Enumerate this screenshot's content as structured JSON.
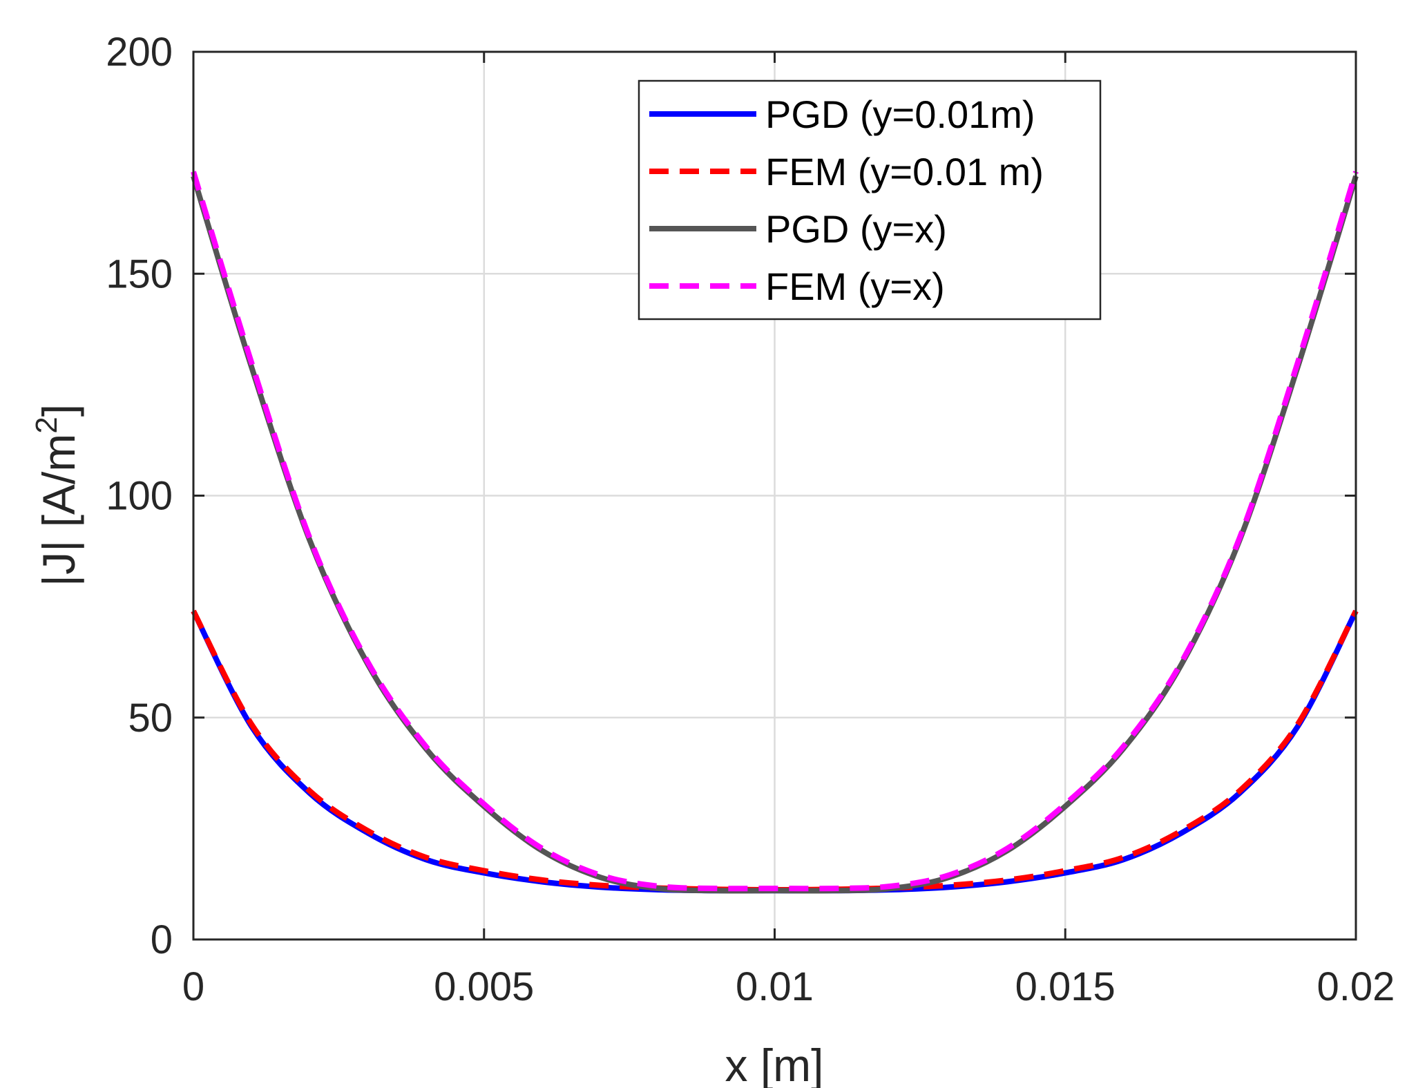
{
  "chart_data": {
    "type": "line",
    "title": "",
    "xlabel": "x [m]",
    "ylabel": "|J| [A/m",
    "ylabel_superscript": "2",
    "ylabel_suffix": "]",
    "xlim": [
      0,
      0.02
    ],
    "ylim": [
      0,
      200
    ],
    "xticks": [
      0,
      0.005,
      0.01,
      0.015,
      0.02
    ],
    "xtick_labels": [
      "0",
      "0.005",
      "0.01",
      "0.015",
      "0.02"
    ],
    "yticks": [
      0,
      50,
      100,
      150,
      200
    ],
    "ytick_labels": [
      "0",
      "50",
      "100",
      "150",
      "200"
    ],
    "grid": true,
    "legend_position": "top-center",
    "x": [
      0,
      0.001,
      0.002,
      0.003,
      0.004,
      0.005,
      0.006,
      0.007,
      0.008,
      0.009,
      0.01,
      0.011,
      0.012,
      0.013,
      0.014,
      0.015,
      0.016,
      0.017,
      0.018,
      0.019,
      0.02
    ],
    "series": [
      {
        "name": "PGD (y=0.01m)",
        "color": "#0000ff",
        "style": "solid",
        "values": [
          74,
          48,
          33,
          24,
          18,
          15,
          13,
          11.8,
          11.2,
          11,
          11,
          11,
          11.2,
          11.8,
          13,
          15,
          18,
          24,
          33,
          48,
          74
        ]
      },
      {
        "name": "FEM (y=0.01 m)",
        "color": "#ff0000",
        "style": "dashed",
        "values": [
          74,
          48.5,
          33.5,
          24.5,
          18.5,
          15.5,
          13.4,
          12.2,
          11.6,
          11.3,
          11.2,
          11.3,
          11.6,
          12.2,
          13.4,
          15.5,
          18.5,
          24.5,
          33.5,
          48.5,
          74
        ]
      },
      {
        "name": "PGD (y=x)",
        "color": "#555555",
        "style": "solid",
        "values": [
          172,
          129,
          90,
          62,
          43,
          30,
          20,
          14,
          11.5,
          11,
          11,
          11,
          11.5,
          14,
          20,
          30,
          43,
          62,
          90,
          129,
          172
        ]
      },
      {
        "name": "FEM (y=x)",
        "color": "#ff00ff",
        "style": "dashed",
        "values": [
          173,
          130,
          90.5,
          62.5,
          43.5,
          30.5,
          20.5,
          14.5,
          12,
          11.5,
          11.5,
          11.5,
          12,
          14.5,
          20.5,
          30.5,
          43.5,
          62.5,
          90.5,
          130,
          173
        ]
      }
    ]
  }
}
